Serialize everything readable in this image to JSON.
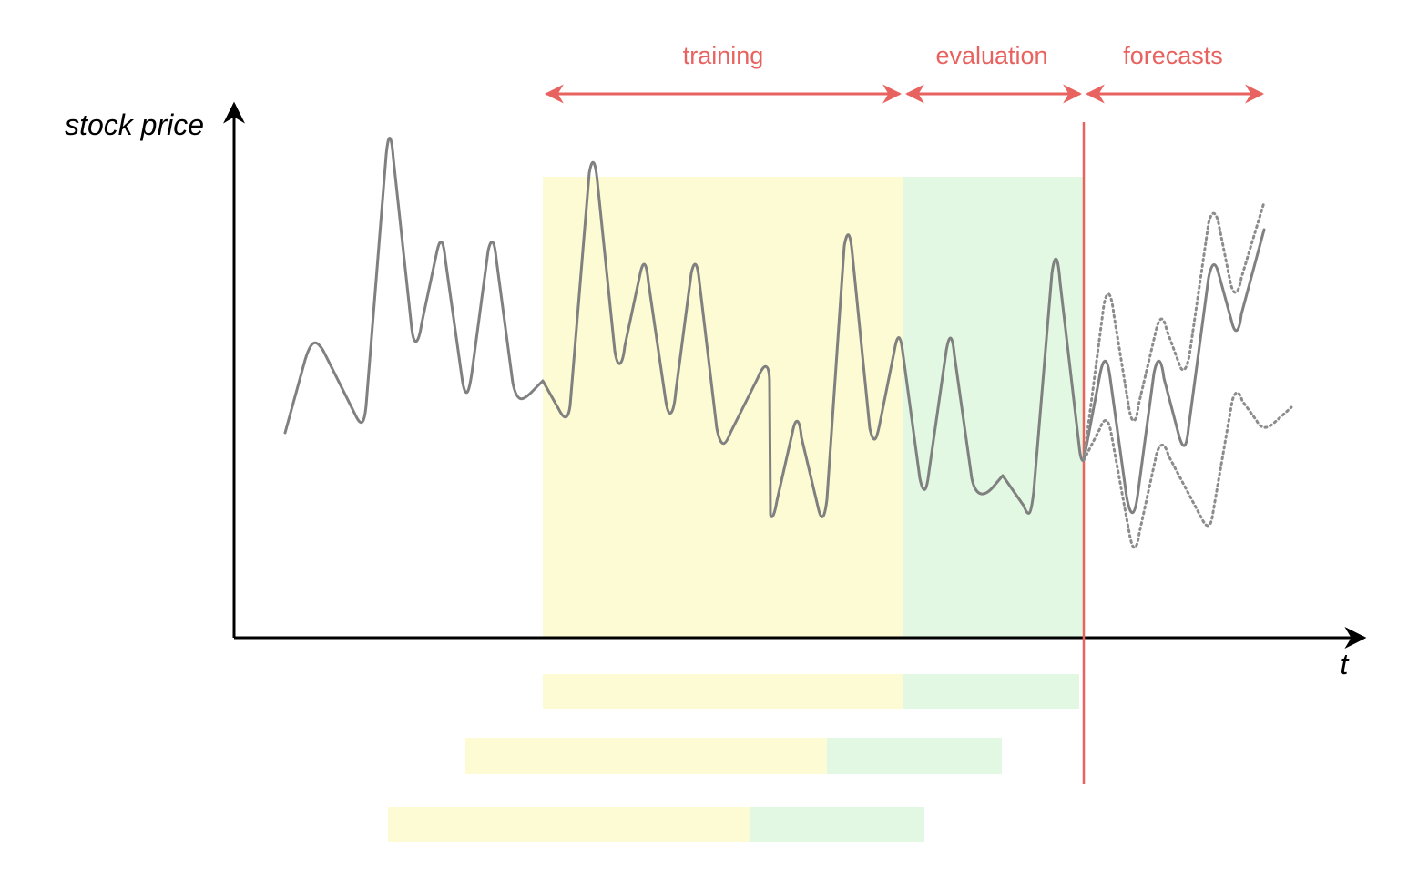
{
  "labels": {
    "training": "training",
    "evaluation": "evaluation",
    "forecasts": "forecasts",
    "y_axis": "stock price",
    "x_axis": "t"
  },
  "colors": {
    "accent_red": "#e8625f",
    "training_fill": "#fdfbd3",
    "evaluation_fill": "#e2f8e2",
    "series_gray": "#808080",
    "axis_black": "#000000"
  }
}
